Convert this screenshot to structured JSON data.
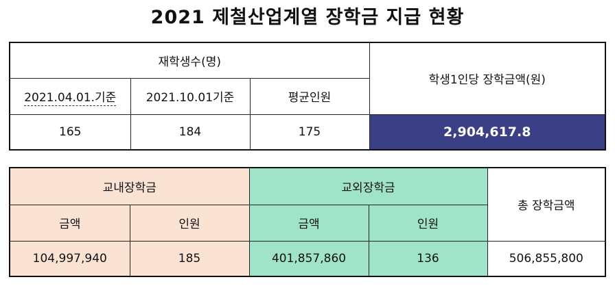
{
  "title": "2021 제철산업계열 장학금 지급 현황",
  "summary_table": {
    "enrolled_header": "재학생수(명)",
    "col_april": "2021.04.01.기준",
    "col_october": "2021.10.01기준",
    "col_average": "평균인원",
    "per_student_header": "학생1인당 장학금액(원)",
    "val_april": "165",
    "val_october": "184",
    "val_average": "175",
    "val_per_student": "2,904,617.8",
    "highlight_color": "#3b3f86"
  },
  "scholarship_table": {
    "internal_header": "교내장학금",
    "external_header": "교외장학금",
    "total_header": "총 장학금액",
    "amount_label": "금액",
    "count_label": "인원",
    "internal_amount": "104,997,940",
    "internal_count": "185",
    "external_amount": "401,857,860",
    "external_count": "136",
    "total_amount": "506,855,800",
    "internal_color": "#fbe3d4",
    "external_color": "#9fe4c8"
  }
}
